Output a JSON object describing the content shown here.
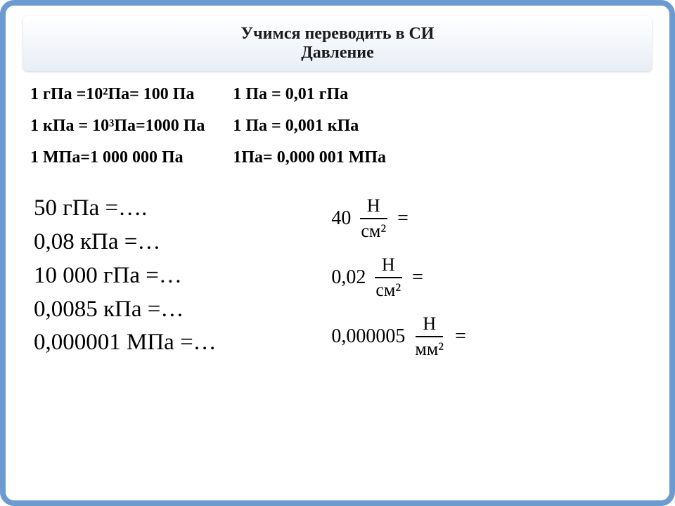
{
  "title": {
    "line1": "Учимся переводить в СИ",
    "line2": "Давление"
  },
  "panel_left": {
    "bg_color": "#6a95c8",
    "text_color": "#ffffff",
    "rows": [
      "1 гПа =10²Па= 100 Па",
      "1 кПа = 10³Па=1000 Па",
      "1 МПа=1 000 000 Па"
    ]
  },
  "panel_right": {
    "bg_color": "#6a95c8",
    "text_color": "#ffffff",
    "rows": [
      "1 Па = 0,01 гПа",
      "1 Па = 0,001 кПа",
      "1Па= 0,000  001 МПа"
    ]
  },
  "exercises_left": [
    "50 гПа =….",
    "0,08 кПа =…",
    "10 000 гПа =…",
    "0,0085 кПа =…",
    "0,000001 МПа =…"
  ],
  "exercises_right": [
    {
      "coef": "40",
      "num": "Н",
      "den": "см²",
      "tail": "="
    },
    {
      "coef": "0,02",
      "num": "Н",
      "den": "см²",
      "tail": "="
    },
    {
      "coef": "0,000005",
      "num": "Н",
      "den": "мм²",
      "tail": "="
    }
  ],
  "style": {
    "frame_border_color": "#6b9bd1",
    "title_bg_gradient_top": "#ffffff",
    "title_bg_gradient_bottom": "#e8eef6",
    "title_font_size": 24,
    "panel_font_size": 24,
    "exercises_font_size": 33,
    "frac_font_size": 28,
    "body_bg": "#ffffff"
  }
}
